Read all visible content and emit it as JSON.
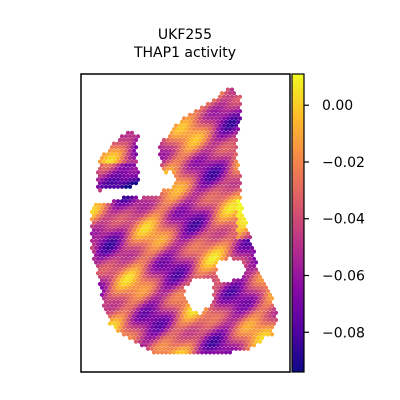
{
  "chart_data": {
    "type": "heatmap",
    "title": "UKF255",
    "subtitle": "THAP1 activity",
    "xlabel": "",
    "ylabel": "",
    "grid": false,
    "colormap": "plasma",
    "colorbar": {
      "vmin": -0.094,
      "vmax": 0.011,
      "ticks": [
        0.0,
        -0.02,
        -0.04,
        -0.06,
        -0.08
      ],
      "tick_labels": [
        "0.00",
        "−0.02",
        "−0.04",
        "−0.06",
        "−0.08"
      ],
      "placement": "right"
    }
  }
}
